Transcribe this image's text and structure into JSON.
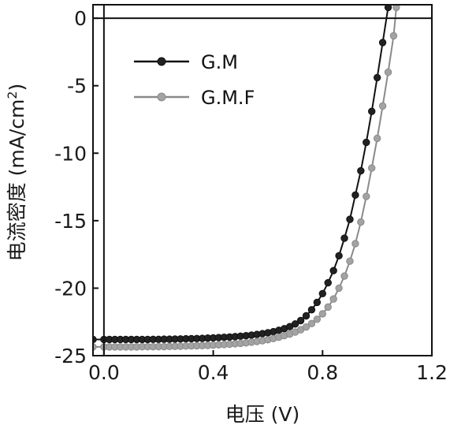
{
  "chart_data": {
    "type": "line",
    "xlabel": "电压 (V)",
    "ylabel_main": "电流密度 (mA/cm",
    "ylabel_sup": "2",
    "ylabel_close": ")",
    "xlim": [
      -0.04,
      1.2
    ],
    "ylim": [
      -25,
      1
    ],
    "x_ticks": [
      0.0,
      0.4,
      0.8,
      1.2
    ],
    "x_tick_labels": [
      "0.0",
      "0.4",
      "0.8",
      "1.2"
    ],
    "y_ticks": [
      0,
      -5,
      -10,
      -15,
      -20,
      -25
    ],
    "y_tick_labels": [
      "0",
      "-5",
      "-10",
      "-15",
      "-20",
      "-25"
    ],
    "grid": false,
    "legend_position": "top-left",
    "series": [
      {
        "name": "G.M",
        "color": "#111111",
        "marker_fill": "#222222",
        "points": [
          [
            -0.04,
            -23.8
          ],
          [
            0.0,
            -23.8
          ],
          [
            0.02,
            -23.8
          ],
          [
            0.04,
            -23.8
          ],
          [
            0.06,
            -23.8
          ],
          [
            0.08,
            -23.8
          ],
          [
            0.1,
            -23.8
          ],
          [
            0.12,
            -23.8
          ],
          [
            0.14,
            -23.8
          ],
          [
            0.16,
            -23.8
          ],
          [
            0.18,
            -23.79
          ],
          [
            0.2,
            -23.79
          ],
          [
            0.22,
            -23.78
          ],
          [
            0.24,
            -23.78
          ],
          [
            0.26,
            -23.77
          ],
          [
            0.28,
            -23.76
          ],
          [
            0.3,
            -23.75
          ],
          [
            0.32,
            -23.74
          ],
          [
            0.34,
            -23.73
          ],
          [
            0.36,
            -23.72
          ],
          [
            0.38,
            -23.7
          ],
          [
            0.4,
            -23.68
          ],
          [
            0.42,
            -23.66
          ],
          [
            0.44,
            -23.64
          ],
          [
            0.46,
            -23.62
          ],
          [
            0.48,
            -23.59
          ],
          [
            0.5,
            -23.56
          ],
          [
            0.52,
            -23.52
          ],
          [
            0.54,
            -23.48
          ],
          [
            0.56,
            -23.43
          ],
          [
            0.58,
            -23.37
          ],
          [
            0.6,
            -23.3
          ],
          [
            0.62,
            -23.22
          ],
          [
            0.64,
            -23.12
          ],
          [
            0.66,
            -23.0
          ],
          [
            0.68,
            -22.85
          ],
          [
            0.7,
            -22.65
          ],
          [
            0.72,
            -22.4
          ],
          [
            0.74,
            -22.05
          ],
          [
            0.76,
            -21.6
          ],
          [
            0.78,
            -21.05
          ],
          [
            0.8,
            -20.4
          ],
          [
            0.82,
            -19.6
          ],
          [
            0.84,
            -18.7
          ],
          [
            0.86,
            -17.6
          ],
          [
            0.88,
            -16.3
          ],
          [
            0.9,
            -14.9
          ],
          [
            0.92,
            -13.1
          ],
          [
            0.94,
            -11.3
          ],
          [
            0.96,
            -9.2
          ],
          [
            0.98,
            -6.9
          ],
          [
            1.0,
            -4.4
          ],
          [
            1.02,
            -1.8
          ],
          [
            1.04,
            0.8
          ]
        ]
      },
      {
        "name": "G.M.F",
        "color": "#8a8a8a",
        "marker_fill": "#a3a3a3",
        "points": [
          [
            -0.04,
            -24.35
          ],
          [
            0.0,
            -24.35
          ],
          [
            0.02,
            -24.35
          ],
          [
            0.04,
            -24.35
          ],
          [
            0.06,
            -24.35
          ],
          [
            0.08,
            -24.35
          ],
          [
            0.1,
            -24.35
          ],
          [
            0.12,
            -24.35
          ],
          [
            0.14,
            -24.34
          ],
          [
            0.16,
            -24.34
          ],
          [
            0.18,
            -24.34
          ],
          [
            0.2,
            -24.33
          ],
          [
            0.22,
            -24.33
          ],
          [
            0.24,
            -24.32
          ],
          [
            0.26,
            -24.31
          ],
          [
            0.28,
            -24.3
          ],
          [
            0.3,
            -24.29
          ],
          [
            0.32,
            -24.28
          ],
          [
            0.34,
            -24.27
          ],
          [
            0.36,
            -24.26
          ],
          [
            0.38,
            -24.24
          ],
          [
            0.4,
            -24.22
          ],
          [
            0.42,
            -24.2
          ],
          [
            0.44,
            -24.18
          ],
          [
            0.46,
            -24.15
          ],
          [
            0.48,
            -24.12
          ],
          [
            0.5,
            -24.09
          ],
          [
            0.52,
            -24.05
          ],
          [
            0.54,
            -24.0
          ],
          [
            0.56,
            -23.95
          ],
          [
            0.58,
            -23.89
          ],
          [
            0.6,
            -23.82
          ],
          [
            0.62,
            -23.73
          ],
          [
            0.64,
            -23.64
          ],
          [
            0.66,
            -23.52
          ],
          [
            0.68,
            -23.4
          ],
          [
            0.7,
            -23.25
          ],
          [
            0.72,
            -23.08
          ],
          [
            0.74,
            -22.88
          ],
          [
            0.76,
            -22.62
          ],
          [
            0.78,
            -22.3
          ],
          [
            0.8,
            -21.9
          ],
          [
            0.82,
            -21.4
          ],
          [
            0.84,
            -20.8
          ],
          [
            0.86,
            -20.0
          ],
          [
            0.88,
            -19.1
          ],
          [
            0.9,
            -18.0
          ],
          [
            0.92,
            -16.7
          ],
          [
            0.94,
            -15.1
          ],
          [
            0.96,
            -13.2
          ],
          [
            0.98,
            -11.1
          ],
          [
            1.0,
            -8.9
          ],
          [
            1.02,
            -6.5
          ],
          [
            1.04,
            -4.0
          ],
          [
            1.06,
            -1.3
          ],
          [
            1.07,
            0.8
          ]
        ]
      }
    ]
  }
}
